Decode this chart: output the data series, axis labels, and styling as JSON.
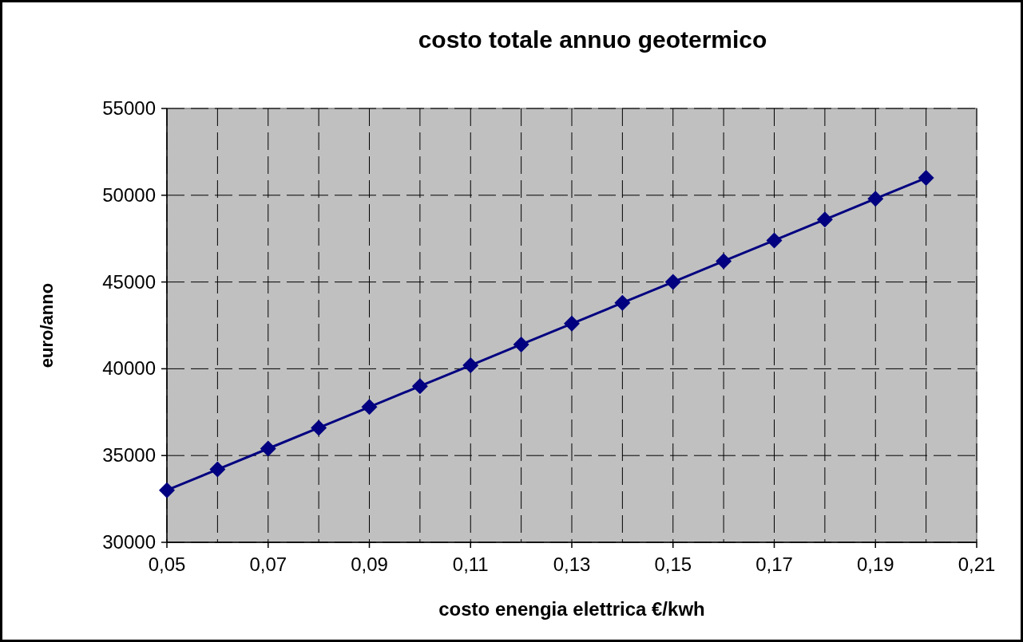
{
  "chart_data": {
    "type": "line",
    "title": "costo totale annuo geotermico",
    "xlabel": "costo enengia elettrica €/kwh",
    "ylabel": "euro/anno",
    "x": [
      0.05,
      0.06,
      0.07,
      0.08,
      0.09,
      0.1,
      0.11,
      0.12,
      0.13,
      0.14,
      0.15,
      0.16,
      0.17,
      0.18,
      0.19,
      0.2
    ],
    "series": [
      {
        "color": "#000080",
        "values": [
          33000,
          34200,
          35400,
          36600,
          37800,
          39000,
          40200,
          41400,
          42600,
          43800,
          45000,
          46200,
          47400,
          48600,
          49800,
          51000
        ]
      }
    ],
    "xlim": [
      0.05,
      0.21
    ],
    "xticks": [
      {
        "value": 0.05,
        "label": "0,05"
      },
      {
        "value": 0.06,
        "label": null
      },
      {
        "value": 0.07,
        "label": "0,07"
      },
      {
        "value": 0.08,
        "label": null
      },
      {
        "value": 0.09,
        "label": "0,09"
      },
      {
        "value": 0.1,
        "label": null
      },
      {
        "value": 0.11,
        "label": "0,11"
      },
      {
        "value": 0.12,
        "label": null
      },
      {
        "value": 0.13,
        "label": "0,13"
      },
      {
        "value": 0.14,
        "label": null
      },
      {
        "value": 0.15,
        "label": "0,15"
      },
      {
        "value": 0.16,
        "label": null
      },
      {
        "value": 0.17,
        "label": "0,17"
      },
      {
        "value": 0.18,
        "label": null
      },
      {
        "value": 0.19,
        "label": "0,19"
      },
      {
        "value": 0.2,
        "label": null
      },
      {
        "value": 0.21,
        "label": "0,21"
      }
    ],
    "ylim": [
      30000,
      55000
    ],
    "yticks": [
      30000,
      35000,
      40000,
      45000,
      50000,
      55000
    ],
    "grid": true,
    "marker": "diamond",
    "line_style": "solid"
  }
}
